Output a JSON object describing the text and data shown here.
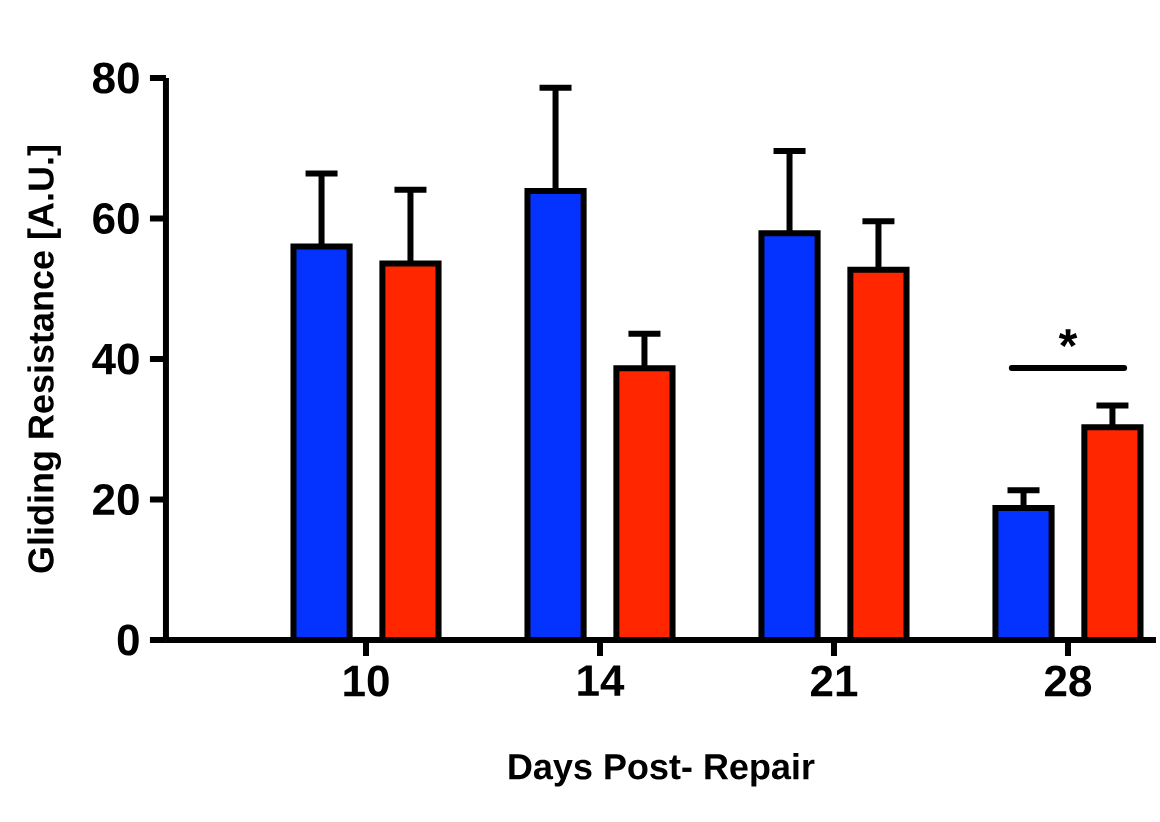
{
  "chart_data": {
    "type": "bar",
    "xlabel": "Days Post- Repair",
    "ylabel": "Gliding Resistance [A.U.]",
    "categories": [
      "10",
      "14",
      "21",
      "28"
    ],
    "series": [
      {
        "color": "#0433ff",
        "values": [
          56,
          63.9,
          57.9,
          18.8
        ],
        "errors": [
          [
            56,
            66.4
          ],
          [
            63.9,
            78.6
          ],
          [
            57.9,
            69.6
          ],
          [
            18.8,
            21.3
          ]
        ]
      },
      {
        "color": "#ff2600",
        "values": [
          53.6,
          38.7,
          52.7,
          30.3
        ],
        "errors": [
          [
            53.6,
            64.1
          ],
          [
            38.7,
            43.6
          ],
          [
            52.7,
            59.6
          ],
          [
            30.3,
            33.4
          ]
        ]
      }
    ],
    "ylim": [
      0,
      80
    ],
    "yticks": [
      0,
      20,
      40,
      60,
      80
    ],
    "grid": false,
    "annotations": [
      "*"
    ]
  }
}
